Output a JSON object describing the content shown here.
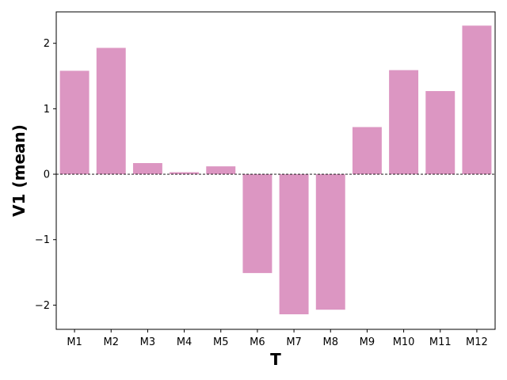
{
  "chart_data": {
    "type": "bar",
    "xlabel": "T",
    "ylabel": "V1 (mean)",
    "categories": [
      "M1",
      "M2",
      "M3",
      "M4",
      "M5",
      "M6",
      "M7",
      "M8",
      "M9",
      "M10",
      "M11",
      "M12"
    ],
    "values": [
      1.58,
      1.93,
      0.17,
      0.03,
      0.12,
      -1.51,
      -2.14,
      -2.07,
      0.72,
      1.59,
      1.27,
      2.27
    ],
    "ylim": [
      -2.37,
      2.48
    ],
    "yticks": [
      -2,
      -1,
      0,
      1,
      2
    ],
    "ytick_labels": [
      "−2",
      "−1",
      "0",
      "1",
      "2"
    ],
    "bar_color": "#dc96c2",
    "zero_line": true,
    "grid": false,
    "legend": "none"
  }
}
